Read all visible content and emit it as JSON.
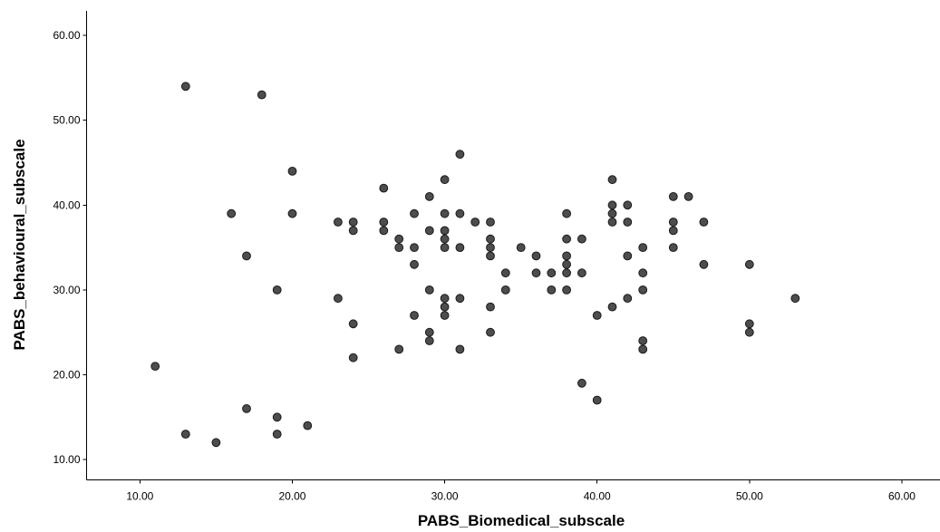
{
  "chart_data": {
    "type": "scatter",
    "title": "",
    "xlabel": "PABS_Biomedical_subscale",
    "ylabel": "PABS_behavioural_subscale",
    "xlim": [
      6.5,
      62.5
    ],
    "ylim": [
      7.6,
      62.9
    ],
    "x_ticks": [
      "10.00",
      "20.00",
      "30.00",
      "40.00",
      "50.00",
      "60.00"
    ],
    "y_ticks": [
      "10.00",
      "20.00",
      "30.00",
      "40.00",
      "50.00",
      "60.00"
    ],
    "grid": false,
    "marker_color": "#4d4d4d",
    "marker_edge_color": "#1a1a1a",
    "points": [
      [
        11,
        21
      ],
      [
        13,
        54
      ],
      [
        13,
        13
      ],
      [
        15,
        12
      ],
      [
        16,
        39
      ],
      [
        17,
        34
      ],
      [
        17,
        16
      ],
      [
        18,
        53
      ],
      [
        19,
        30
      ],
      [
        19,
        15
      ],
      [
        19,
        13
      ],
      [
        20,
        44
      ],
      [
        20,
        39
      ],
      [
        21,
        14
      ],
      [
        23,
        38
      ],
      [
        23,
        29
      ],
      [
        24,
        38
      ],
      [
        24,
        37
      ],
      [
        24,
        26
      ],
      [
        24,
        22
      ],
      [
        26,
        42
      ],
      [
        26,
        38
      ],
      [
        26,
        37
      ],
      [
        27,
        36
      ],
      [
        27,
        35
      ],
      [
        27,
        23
      ],
      [
        28,
        39
      ],
      [
        28,
        35
      ],
      [
        28,
        33
      ],
      [
        28,
        27
      ],
      [
        29,
        41
      ],
      [
        29,
        37
      ],
      [
        29,
        30
      ],
      [
        29,
        25
      ],
      [
        29,
        24
      ],
      [
        30,
        43
      ],
      [
        30,
        39
      ],
      [
        30,
        37
      ],
      [
        30,
        36
      ],
      [
        30,
        35
      ],
      [
        30,
        29
      ],
      [
        30,
        28
      ],
      [
        30,
        27
      ],
      [
        31,
        46
      ],
      [
        31,
        39
      ],
      [
        31,
        35
      ],
      [
        31,
        29
      ],
      [
        31,
        23
      ],
      [
        32,
        38
      ],
      [
        33,
        38
      ],
      [
        33,
        36
      ],
      [
        33,
        35
      ],
      [
        33,
        34
      ],
      [
        33,
        28
      ],
      [
        33,
        25
      ],
      [
        34,
        32
      ],
      [
        34,
        30
      ],
      [
        35,
        35
      ],
      [
        36,
        34
      ],
      [
        36,
        32
      ],
      [
        37,
        32
      ],
      [
        37,
        30
      ],
      [
        38,
        39
      ],
      [
        38,
        36
      ],
      [
        38,
        34
      ],
      [
        38,
        33
      ],
      [
        38,
        32
      ],
      [
        38,
        30
      ],
      [
        39,
        36
      ],
      [
        39,
        32
      ],
      [
        39,
        19
      ],
      [
        40,
        27
      ],
      [
        40,
        17
      ],
      [
        41,
        43
      ],
      [
        41,
        40
      ],
      [
        41,
        39
      ],
      [
        41,
        38
      ],
      [
        41,
        28
      ],
      [
        42,
        40
      ],
      [
        42,
        38
      ],
      [
        42,
        34
      ],
      [
        42,
        29
      ],
      [
        43,
        35
      ],
      [
        43,
        32
      ],
      [
        43,
        30
      ],
      [
        43,
        24
      ],
      [
        43,
        23
      ],
      [
        45,
        41
      ],
      [
        45,
        38
      ],
      [
        45,
        37
      ],
      [
        45,
        35
      ],
      [
        46,
        41
      ],
      [
        47,
        38
      ],
      [
        47,
        33
      ],
      [
        50,
        33
      ],
      [
        50,
        26
      ],
      [
        50,
        25
      ],
      [
        53,
        29
      ]
    ]
  }
}
